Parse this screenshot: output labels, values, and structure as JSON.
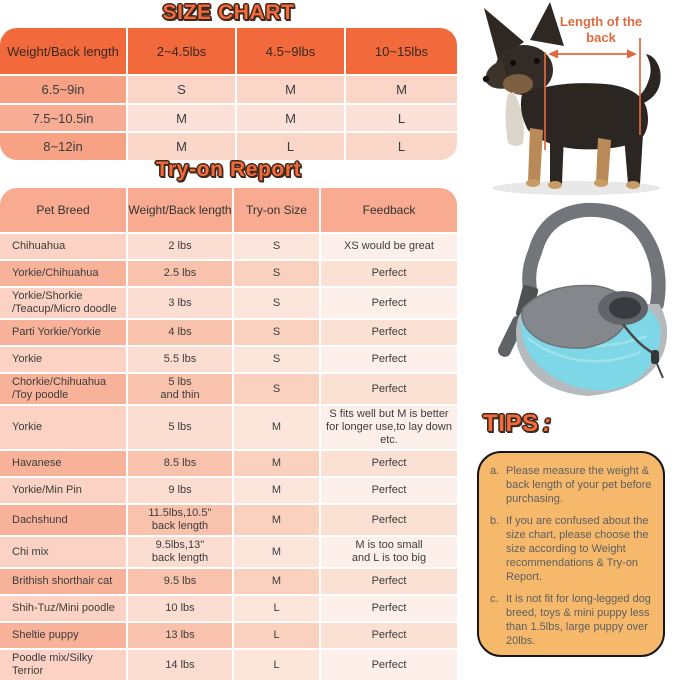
{
  "size_chart": {
    "title": "SIZE CHART",
    "headers": [
      "Weight/Back length",
      "2~4.5lbs",
      "4.5~9lbs",
      "10~15lbs"
    ],
    "rows": [
      [
        "6.5~9in",
        "S",
        "M",
        "M"
      ],
      [
        "7.5~10.5in",
        "M",
        "M",
        "L"
      ],
      [
        "8~12in",
        "M",
        "L",
        "L"
      ]
    ]
  },
  "tryon": {
    "title": "Try-on Report",
    "headers": [
      "Pet Breed",
      "Weight/Back length",
      "Try-on Size",
      "Feedback"
    ],
    "rows": [
      [
        "Chihuahua",
        "2 lbs",
        "S",
        "XS would be great"
      ],
      [
        "Yorkie/Chihuahua",
        "2.5 lbs",
        "S",
        "Perfect"
      ],
      [
        "Yorkie/Shorkie\n/Teacup/Micro doodle",
        "3 lbs",
        "S",
        "Perfect"
      ],
      [
        "Parti Yorkie/Yorkie",
        "4 lbs",
        "S",
        "Perfect"
      ],
      [
        "Yorkie",
        "5.5 lbs",
        "S",
        "Perfect"
      ],
      [
        "Chorkie/Chihuahua\n/Toy poodle",
        "5 lbs\nand thin",
        "S",
        "Perfect"
      ],
      [
        "Yorkie",
        "5 lbs",
        "M",
        "S fits well but M is better\nfor longer use,to lay down etc."
      ],
      [
        "Havanese",
        "8.5 lbs",
        "M",
        "Perfect"
      ],
      [
        "Yorkie/Min Pin",
        "9 lbs",
        "M",
        "Perfect"
      ],
      [
        "Dachshund",
        "11.5lbs,10.5''\nback length",
        "M",
        "Perfect"
      ],
      [
        "Chi mix",
        "9.5lbs,13''\nback length",
        "M",
        "M is too small\nand L is too big"
      ],
      [
        "Brithish shorthair cat",
        "9.5 lbs",
        "M",
        "Perfect"
      ],
      [
        "Shih-Tuz/Mini poodle",
        "10 lbs",
        "L",
        "Perfect"
      ],
      [
        "Sheltie puppy",
        "13 lbs",
        "L",
        "Perfect"
      ],
      [
        "Poodle mix/Silky\nTerrior",
        "14 lbs",
        "L",
        "Perfect"
      ]
    ]
  },
  "dog_figure": {
    "label": "Length of the back"
  },
  "tips": {
    "title": "TIPS",
    "colon": ":",
    "items": [
      {
        "marker": "a.",
        "text": "Please measure the weight & back length of your pet before purchasing."
      },
      {
        "marker": "b.",
        "text": "If you are confused about the size chart, please choose the size according to Weight recommendations & Try-on Report."
      },
      {
        "marker": "c.",
        "text": "It is not fit for long-legged dog breed, toys & mini puppy less than 1.5lbs, large puppy over 20lbs."
      }
    ]
  },
  "colors": {
    "title_orange": "#F4693C",
    "title_outline": "#3E2A1C",
    "size_header_bg": "#F26A3C",
    "tryon_header_bg": "#F8AB90",
    "salmon_column": "#F7A185",
    "light_row": "#FAD6C9",
    "tips_box_bg": "#F6B96C",
    "tips_border": "#161616",
    "measure_orange": "#E0693C",
    "label_orange": "#DC6C3F",
    "carrier_blue": "#7ED7E7",
    "carrier_gray": "#84888C"
  }
}
